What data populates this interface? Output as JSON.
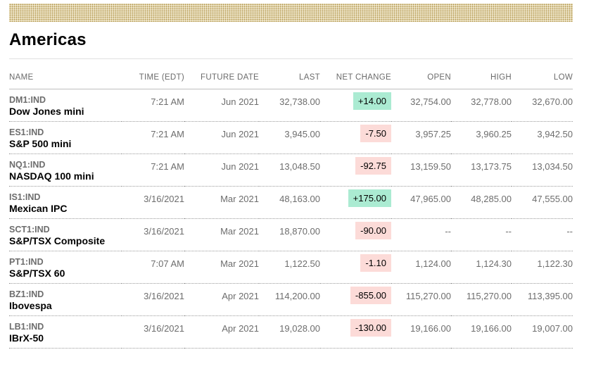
{
  "page": {
    "title": "Americas"
  },
  "colors": {
    "up_badge": "#abebd2",
    "down_badge": "#fcdbd8",
    "band_background": "#f9f3e0",
    "band_dot": "#b2974d"
  },
  "table": {
    "columns": [
      "NAME",
      "TIME (EDT)",
      "FUTURE DATE",
      "LAST",
      "NET CHANGE",
      "OPEN",
      "HIGH",
      "LOW"
    ],
    "rows": [
      {
        "ticker": "DM1:IND",
        "name": "Dow Jones mini",
        "time": "7:21 AM",
        "future_date": "Jun 2021",
        "last": "32,738.00",
        "net_change": "+14.00",
        "direction": "up",
        "open": "32,754.00",
        "high": "32,778.00",
        "low": "32,670.00"
      },
      {
        "ticker": "ES1:IND",
        "name": "S&P 500 mini",
        "time": "7:21 AM",
        "future_date": "Jun 2021",
        "last": "3,945.00",
        "net_change": "-7.50",
        "direction": "down",
        "open": "3,957.25",
        "high": "3,960.25",
        "low": "3,942.50"
      },
      {
        "ticker": "NQ1:IND",
        "name": "NASDAQ 100 mini",
        "time": "7:21 AM",
        "future_date": "Jun 2021",
        "last": "13,048.50",
        "net_change": "-92.75",
        "direction": "down",
        "open": "13,159.50",
        "high": "13,173.75",
        "low": "13,034.50"
      },
      {
        "ticker": "IS1:IND",
        "name": "Mexican IPC",
        "time": "3/16/2021",
        "future_date": "Mar 2021",
        "last": "48,163.00",
        "net_change": "+175.00",
        "direction": "up",
        "open": "47,965.00",
        "high": "48,285.00",
        "low": "47,555.00"
      },
      {
        "ticker": "SCT1:IND",
        "name": "S&P/TSX Composite",
        "time": "3/16/2021",
        "future_date": "Mar 2021",
        "last": "18,870.00",
        "net_change": "-90.00",
        "direction": "down",
        "open": "--",
        "high": "--",
        "low": "--"
      },
      {
        "ticker": "PT1:IND",
        "name": "S&P/TSX 60",
        "time": "7:07 AM",
        "future_date": "Mar 2021",
        "last": "1,122.50",
        "net_change": "-1.10",
        "direction": "down",
        "open": "1,124.00",
        "high": "1,124.30",
        "low": "1,122.30"
      },
      {
        "ticker": "BZ1:IND",
        "name": "Ibovespa",
        "time": "3/16/2021",
        "future_date": "Apr 2021",
        "last": "114,200.00",
        "net_change": "-855.00",
        "direction": "down",
        "open": "115,270.00",
        "high": "115,270.00",
        "low": "113,395.00"
      },
      {
        "ticker": "LB1:IND",
        "name": "IBrX-50",
        "time": "3/16/2021",
        "future_date": "Apr 2021",
        "last": "19,028.00",
        "net_change": "-130.00",
        "direction": "down",
        "open": "19,166.00",
        "high": "19,166.00",
        "low": "19,007.00"
      }
    ]
  }
}
